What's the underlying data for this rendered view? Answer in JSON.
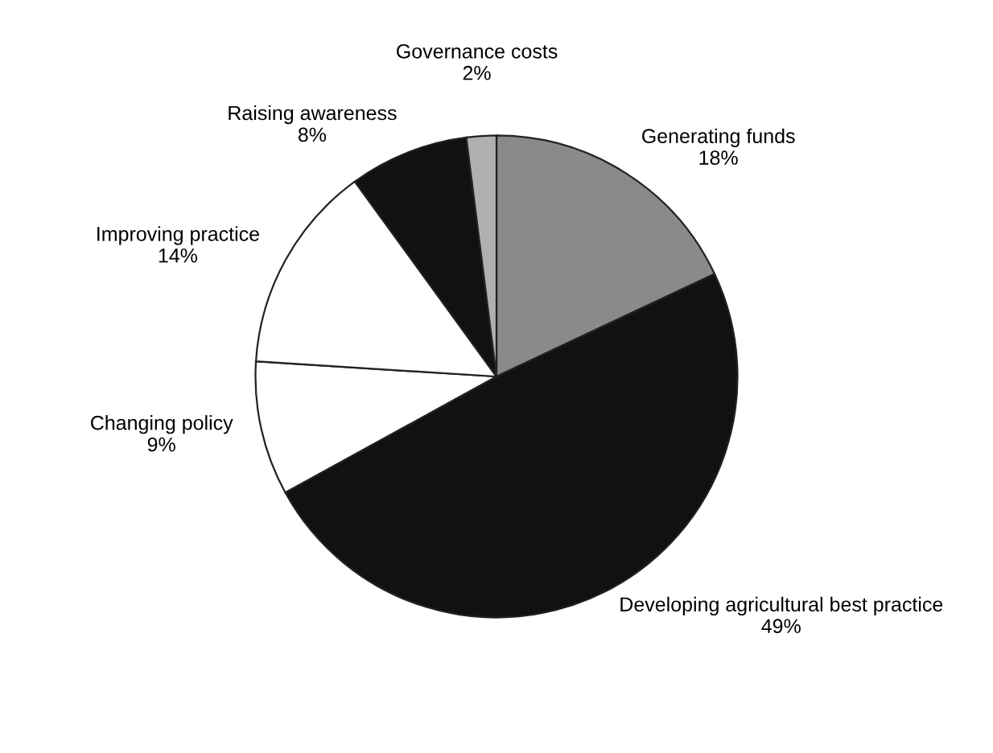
{
  "chart_data": {
    "type": "pie",
    "categories": [
      "Generating funds",
      "Developing agricultural best practice",
      "Changing policy",
      "Improving practice",
      "Raising awareness",
      "Governance costs"
    ],
    "values": [
      18,
      49,
      9,
      14,
      8,
      2
    ],
    "value_labels": [
      "18%",
      "49%",
      "9%",
      "14%",
      "8%",
      "2%"
    ],
    "colors": [
      "#8a8a8a",
      "#111111",
      "#ffffff",
      "#ffffff",
      "#111111",
      "#b0b0b0"
    ],
    "legend": false
  }
}
